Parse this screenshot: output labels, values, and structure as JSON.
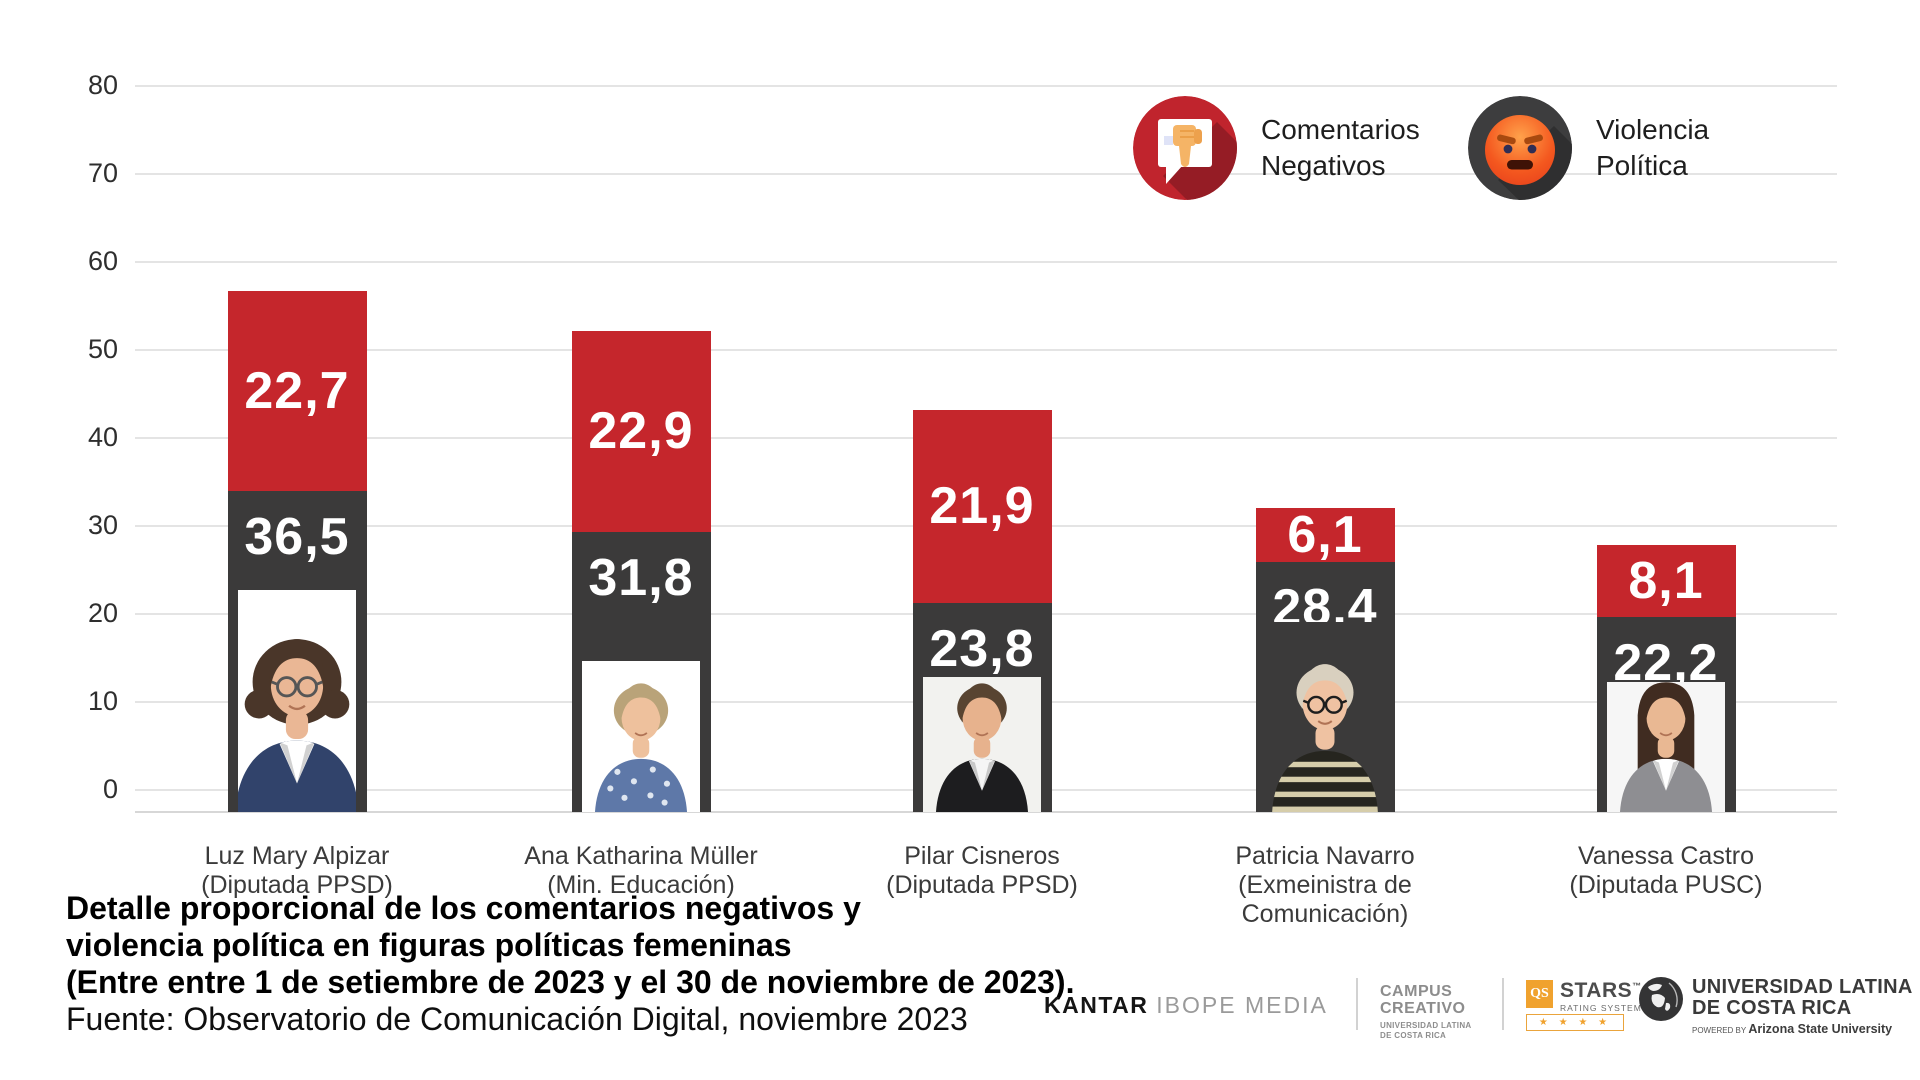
{
  "legend": {
    "items": [
      {
        "label": "Comentarios Negativos",
        "icon": "thumbs-down-badge-icon",
        "color": "#c5262c"
      },
      {
        "label": "Violencia Política",
        "icon": "angry-face-badge-icon",
        "color": "#3b3a3a"
      }
    ]
  },
  "chart_data": {
    "type": "bar",
    "stacked": true,
    "title": "Detalle proporcional de los comentarios negativos y violencia política en figuras políticas femeninas",
    "subtitle": "(Entre entre 1 de setiembre de 2023 y el 30 de noviembre de 2023).",
    "source": "Fuente: Observatorio de Comunicación Digital, noviembre 2023",
    "categories": [
      "Luz Mary Alpizar (Diputada PPSD)",
      "Ana Katharina Müller (Min. Educación)",
      "Pilar Cisneros (Diputada PPSD)",
      "Patricia Navarro (Exmeinistra de Comunicación)",
      "Vanessa Castro (Diputada PUSC)"
    ],
    "category_lines": [
      [
        "Luz Mary Alpizar",
        "(Diputada PPSD)"
      ],
      [
        "Ana Katharina Müller",
        "(Min. Educación)"
      ],
      [
        "Pilar Cisneros",
        "(Diputada PPSD)"
      ],
      [
        "Patricia Navarro",
        "(Exmeinistra de",
        "Comunicación)"
      ],
      [
        "Vanessa Castro",
        "(Diputada PUSC)"
      ]
    ],
    "series": [
      {
        "name": "Violencia Política",
        "stack_position": "bottom",
        "color": "#3b3a3a",
        "values": [
          36.5,
          31.8,
          23.8,
          28.4,
          22.2
        ],
        "value_labels": [
          "36,5",
          "31,8",
          "23,8",
          "28,4",
          "22,2"
        ]
      },
      {
        "name": "Comentarios Negativos",
        "stack_position": "top",
        "color": "#c5262c",
        "values": [
          22.7,
          22.9,
          21.9,
          6.1,
          8.1
        ],
        "value_labels": [
          "22,7",
          "22,9",
          "21,9",
          "6,1",
          "8,1"
        ]
      }
    ],
    "ylim": [
      0,
      80
    ],
    "yticks": [
      0,
      10,
      20,
      30,
      40,
      50,
      60,
      70,
      80
    ],
    "grid": true,
    "grid_color": "#e4e4e4",
    "legend_position": "top-right"
  },
  "people_avatars": [
    {
      "person": "Luz Mary Alpizar",
      "bg": "#ffffff",
      "skin": "#eab795",
      "hair": "#4a3629",
      "style": "curly",
      "top": "#31436b",
      "shirt": "#ffffff",
      "glasses": true,
      "glass": "#565656",
      "photo_height": 222
    },
    {
      "person": "Ana Katharina Müller",
      "bg": "#ffffff",
      "skin": "#eec19d",
      "hair": "#b9a379",
      "style": "shortcurl",
      "top": "#5e78a8",
      "shirt": "",
      "pattern": "#dfe6f0",
      "glasses": false,
      "photo_height": 151
    },
    {
      "person": "Pilar Cisneros",
      "bg": "#f2f2ef",
      "skin": "#e7b28d",
      "hair": "#584431",
      "style": "short",
      "top": "#1d1d1f",
      "shirt": "#f5f5f5",
      "glasses": false,
      "photo_height": 135
    },
    {
      "person": "Patricia Navarro",
      "bg": "#3b3a3a",
      "skin": "#efc2a2",
      "hair": "#d9d0bf",
      "style": "short",
      "top": "#26251f",
      "stripes": "#d6cdaa",
      "glasses": true,
      "glass": "#1e1e1e",
      "photo_height": 190
    },
    {
      "person": "Vanessa Castro",
      "bg": "#f6f6f6",
      "skin": "#e9b893",
      "hair": "#402c21",
      "style": "long",
      "top": "#8e8e92",
      "shirt": "#ffffff",
      "glasses": false,
      "photo_height": 130
    }
  ],
  "caption": {
    "line1": "Detalle proporcional de los comentarios negativos y",
    "line2": "violencia política en figuras políticas femeninas",
    "line3": "(Entre entre 1 de setiembre de 2023 y el 30 de noviembre de 2023).",
    "source": "Fuente: Observatorio de Comunicación Digital, noviembre 2023"
  },
  "footer": {
    "kantar_black": "KANTAR",
    "kantar_gray": "IBOPE MEDIA",
    "campus_line1": "CAMPUS",
    "campus_line2": "CREATIVO",
    "campus_sub1": "UNIVERSIDAD LATINA",
    "campus_sub2": "DE COSTA RICA",
    "qs_square": "QS",
    "qs_title": "STARS",
    "qs_tm": "™",
    "qs_sub": "RATING SYSTEM",
    "qs_stars": "★ ★ ★ ★",
    "ul_line1": "UNIVERSIDAD LATINA",
    "ul_line2": "DE COSTA RICA",
    "ul_powered_pre": "POWERED BY ",
    "ul_powered": "Arizona State University"
  }
}
